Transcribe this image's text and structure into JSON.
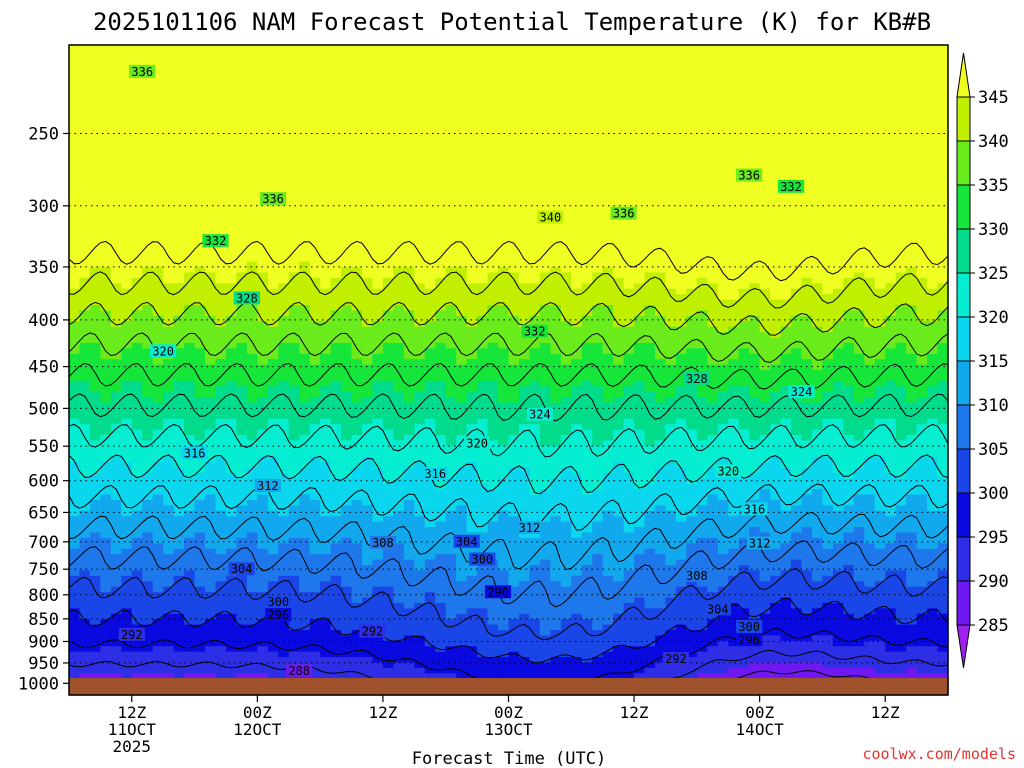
{
  "chart_data": {
    "type": "heatmap",
    "title": "2025101106 NAM Forecast Potential Temperature (K) for KB#B",
    "xlabel": "Forecast Time (UTC)",
    "ylabel": "",
    "credit": "coolwx.com/models",
    "y_axis": {
      "type": "log-pressure",
      "range_hpa": [
        1030,
        200
      ],
      "ticks": [
        "250",
        "300",
        "350",
        "400",
        "450",
        "500",
        "550",
        "600",
        "650",
        "700",
        "750",
        "800",
        "850",
        "900",
        "950",
        "1000"
      ]
    },
    "x_axis": {
      "range_hours": [
        0,
        84
      ],
      "ticks": [
        {
          "hour": 6,
          "lines": [
            "12Z",
            "11OCT",
            "2025"
          ]
        },
        {
          "hour": 18,
          "lines": [
            "00Z",
            "12OCT"
          ]
        },
        {
          "hour": 30,
          "lines": [
            "12Z"
          ]
        },
        {
          "hour": 42,
          "lines": [
            "00Z",
            "13OCT"
          ]
        },
        {
          "hour": 54,
          "lines": [
            "12Z"
          ]
        },
        {
          "hour": 66,
          "lines": [
            "00Z",
            "14OCT"
          ]
        },
        {
          "hour": 78,
          "lines": [
            "12Z"
          ]
        }
      ]
    },
    "colorbar": {
      "levels": [
        285,
        290,
        295,
        300,
        305,
        310,
        315,
        320,
        325,
        330,
        335,
        340,
        345
      ],
      "labels": [
        "285",
        "290",
        "295",
        "300",
        "305",
        "310",
        "315",
        "320",
        "325",
        "330",
        "335",
        "340",
        "345"
      ],
      "colors": [
        "#a020f0",
        "#7018f0",
        "#2e2ee6",
        "#0a0ae0",
        "#1a46e8",
        "#1e78eb",
        "#12a8ee",
        "#0ad6ee",
        "#06eed2",
        "#00dc8c",
        "#16e63a",
        "#6aec1c",
        "#c0f000",
        "#f0ff22"
      ]
    },
    "contour_labels": [
      {
        "text": "336",
        "hour": 7,
        "p": 214
      },
      {
        "text": "336",
        "hour": 19.5,
        "p": 295
      },
      {
        "text": "332",
        "hour": 14,
        "p": 328
      },
      {
        "text": "328",
        "hour": 17,
        "p": 379
      },
      {
        "text": "320",
        "hour": 9,
        "p": 433
      },
      {
        "text": "316",
        "hour": 12,
        "p": 560
      },
      {
        "text": "312",
        "hour": 19,
        "p": 608
      },
      {
        "text": "304",
        "hour": 16.5,
        "p": 750
      },
      {
        "text": "300",
        "hour": 20,
        "p": 815
      },
      {
        "text": "296",
        "hour": 20,
        "p": 842
      },
      {
        "text": "292",
        "hour": 6,
        "p": 885
      },
      {
        "text": "288",
        "hour": 22,
        "p": 970
      },
      {
        "text": "308",
        "hour": 30,
        "p": 702
      },
      {
        "text": "304",
        "hour": 38,
        "p": 700
      },
      {
        "text": "300",
        "hour": 39.5,
        "p": 732
      },
      {
        "text": "296",
        "hour": 41,
        "p": 795
      },
      {
        "text": "292",
        "hour": 29,
        "p": 878
      },
      {
        "text": "316",
        "hour": 35,
        "p": 590
      },
      {
        "text": "320",
        "hour": 39,
        "p": 546
      },
      {
        "text": "312",
        "hour": 44,
        "p": 676
      },
      {
        "text": "324",
        "hour": 45,
        "p": 508
      },
      {
        "text": "332",
        "hour": 44.5,
        "p": 412
      },
      {
        "text": "340",
        "hour": 46,
        "p": 309
      },
      {
        "text": "336",
        "hour": 53,
        "p": 306
      },
      {
        "text": "336",
        "hour": 65,
        "p": 278
      },
      {
        "text": "332",
        "hour": 69,
        "p": 286
      },
      {
        "text": "328",
        "hour": 60,
        "p": 464
      },
      {
        "text": "324",
        "hour": 70,
        "p": 480
      },
      {
        "text": "320",
        "hour": 63,
        "p": 586
      },
      {
        "text": "316",
        "hour": 65.5,
        "p": 645
      },
      {
        "text": "312",
        "hour": 66,
        "p": 703
      },
      {
        "text": "308",
        "hour": 60,
        "p": 763
      },
      {
        "text": "304",
        "hour": 62,
        "p": 830
      },
      {
        "text": "300",
        "hour": 65,
        "p": 868
      },
      {
        "text": "296",
        "hour": 65,
        "p": 897
      },
      {
        "text": "292",
        "hour": 58,
        "p": 941
      }
    ]
  }
}
